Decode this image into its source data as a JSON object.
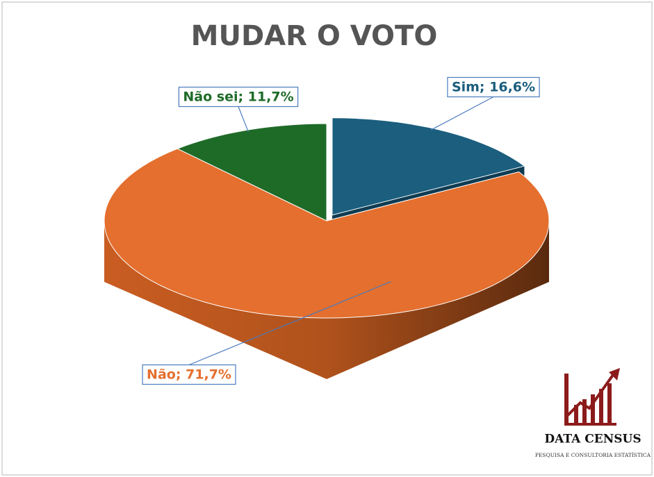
{
  "chart_data": {
    "type": "pie",
    "title": "MUDAR O VOTO",
    "categories": [
      "Sim",
      "Não",
      "Não sei"
    ],
    "values": [
      16.6,
      71.7,
      11.7
    ],
    "value_labels": [
      "Sim; 16,6%",
      "Não; 71,7%",
      "Não sei; 11,7%"
    ],
    "colors": [
      "#1b5e7e",
      "#e46f2e",
      "#1e6b28"
    ]
  },
  "logo": {
    "name": "DATA CENSUS",
    "tagline": "PESQUISA E CONSULTORIA ESTATÍSTICA"
  }
}
